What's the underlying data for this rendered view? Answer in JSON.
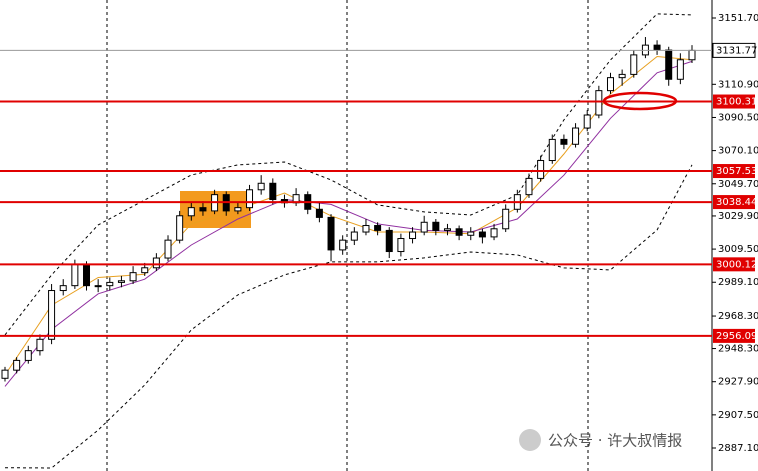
{
  "chart_data": {
    "type": "candlestick",
    "ylim": [
      2872.95,
      3162.78
    ],
    "yticks": [
      {
        "value": 3151.7,
        "label": "3151.70"
      },
      {
        "value": 3110.9,
        "label": "3110.90"
      },
      {
        "value": 3090.5,
        "label": "3090.50"
      },
      {
        "value": 3070.1,
        "label": "3070.10"
      },
      {
        "value": 3049.7,
        "label": "3049.70"
      },
      {
        "value": 3029.9,
        "label": "3029.90"
      },
      {
        "value": 3009.5,
        "label": "3009.50"
      },
      {
        "value": 2989.1,
        "label": "2989.10"
      },
      {
        "value": 2968.3,
        "label": "2968.30"
      },
      {
        "value": 2948.3,
        "label": "2948.30"
      },
      {
        "value": 2927.9,
        "label": "2927.90"
      },
      {
        "value": 2907.5,
        "label": "2907.50"
      },
      {
        "value": 2887.1,
        "label": "2887.10"
      }
    ],
    "current_price": 3131.77,
    "levels": [
      3100.31,
      3057.53,
      3038.44,
      3000.12,
      2956.09
    ],
    "level_color": "#e00000",
    "open": [
      2930,
      2935,
      2941,
      2947,
      2954,
      2984,
      2987,
      3000,
      2987,
      2987,
      2989,
      2990,
      2995,
      2998,
      3004,
      3015,
      3030,
      3035,
      3033,
      3043,
      3033,
      3035,
      3046,
      3050,
      3040,
      3038,
      3043,
      3034,
      3029,
      3009,
      3015,
      3020,
      3024,
      3021,
      3008,
      3016,
      3020,
      3026,
      3021,
      3022,
      3018,
      3020,
      3017,
      3022,
      3034,
      3043,
      3053,
      3064,
      3077,
      3074,
      3084,
      3092,
      3107,
      3115,
      3117,
      3129,
      3135,
      3132,
      3114,
      3126
    ],
    "high": [
      2937,
      2943,
      2950,
      2957,
      2988,
      2991,
      3003,
      3002,
      2991,
      2992,
      2993,
      2999,
      3001,
      3007,
      3018,
      3033,
      3038,
      3039,
      3046,
      3045,
      3038,
      3049,
      3055,
      3053,
      3043,
      3047,
      3045,
      3038,
      3031,
      3018,
      3023,
      3028,
      3026,
      3023,
      3019,
      3023,
      3030,
      3028,
      3025,
      3024,
      3023,
      3022,
      3025,
      3037,
      3046,
      3056,
      3067,
      3080,
      3080,
      3087,
      3095,
      3110,
      3118,
      3120,
      3132,
      3140,
      3138,
      3134,
      3130,
      3135
    ],
    "low": [
      2928,
      2933,
      2939,
      2944,
      2951,
      2981,
      2985,
      2984,
      2983,
      2984,
      2986,
      2988,
      2993,
      2996,
      3002,
      3013,
      3027,
      3030,
      3031,
      3030,
      3031,
      3033,
      3043,
      3037,
      3035,
      3036,
      3031,
      3026,
      3002,
      3006,
      3012,
      3018,
      3018,
      3004,
      3005,
      3013,
      3018,
      3018,
      3018,
      3015,
      3015,
      3013,
      3015,
      3020,
      3032,
      3041,
      3051,
      3062,
      3071,
      3072,
      3082,
      3090,
      3105,
      3110,
      3115,
      3127,
      3129,
      3110,
      3111,
      3124
    ],
    "close": [
      2935,
      2941,
      2947,
      2954,
      2984,
      2987,
      3000,
      2987,
      2987,
      2989,
      2990,
      2995,
      2998,
      3004,
      3015,
      3030,
      3035,
      3033,
      3043,
      3033,
      3035,
      3046,
      3050,
      3040,
      3038,
      3043,
      3034,
      3029,
      3009,
      3015,
      3020,
      3024,
      3021,
      3008,
      3016,
      3020,
      3026,
      3021,
      3022,
      3018,
      3020,
      3017,
      3022,
      3034,
      3043,
      3053,
      3064,
      3077,
      3074,
      3084,
      3092,
      3107,
      3115,
      3117,
      3129,
      3135,
      3132,
      3114,
      3126,
      3131.77
    ],
    "line_x": [
      0,
      4,
      8,
      12,
      16,
      20,
      24,
      28,
      32,
      36,
      40,
      44,
      48,
      52,
      56,
      59
    ],
    "lines": [
      {
        "color": "#000000",
        "dashed": true,
        "values": [
          2956.7,
          2993.6,
          3024.4,
          3039.7,
          3055.1,
          3061.3,
          3063.1,
          3052.1,
          3036.7,
          3032.4,
          3030.5,
          3042.8,
          3089,
          3125.9,
          3154.2,
          3153.6
        ]
      },
      {
        "color": "#000000",
        "dashed": true,
        "values": [
          2875,
          2874.8,
          2898.2,
          2925.9,
          2959.8,
          2981.3,
          2993.6,
          3001.6,
          3001.6,
          3004.1,
          3007.7,
          3005.9,
          2997.9,
          2996.7,
          3021.3,
          3061.3
        ]
      },
      {
        "color": "#e8a020",
        "dashed": false,
        "values": [
          2932,
          2975,
          2992,
          2994,
          3025,
          3034,
          3044,
          3030,
          3020,
          3020,
          3019,
          3035,
          3068,
          3105,
          3128,
          3126
        ]
      },
      {
        "color": "#9030a0",
        "dashed": false,
        "values": [
          2925,
          2960,
          2982,
          2991,
          3012,
          3028,
          3040,
          3037,
          3025,
          3021,
          3020,
          3028,
          3055,
          3090,
          3118,
          3125
        ]
      }
    ],
    "watermark": "公众号 · 许大叔情报"
  }
}
